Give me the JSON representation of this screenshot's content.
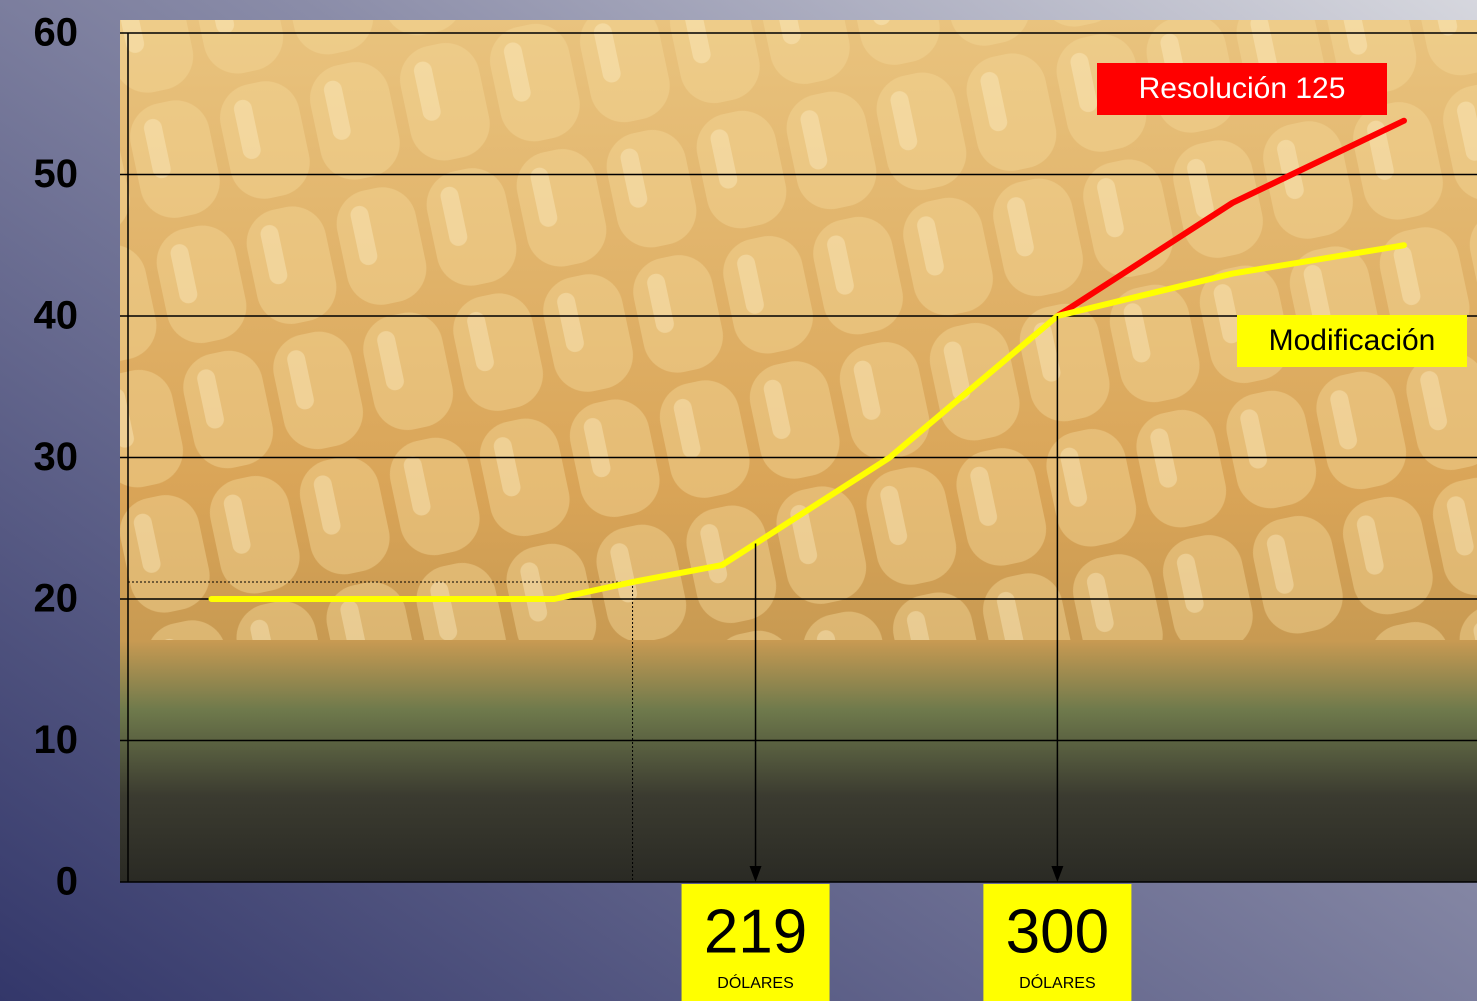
{
  "chart_data": {
    "type": "line",
    "xlim": [
      50.6,
      412.6
    ],
    "ylim": [
      0,
      60
    ],
    "yticks": [
      0,
      10,
      20,
      30,
      40,
      50,
      60
    ],
    "grid": true,
    "series": [
      {
        "name": "Modificación",
        "color": "#ffff00",
        "x": [
          73,
          165,
          186,
          210,
          255,
          300,
          347,
          393
        ],
        "values": [
          20,
          20,
          21.2,
          22.4,
          30,
          40,
          43,
          45
        ]
      },
      {
        "name": "Resolución 125",
        "color": "#ff0000",
        "x": [
          300,
          347,
          393
        ],
        "values": [
          40,
          48,
          53.8
        ]
      }
    ],
    "annotations": [
      {
        "x": 219,
        "text": "219",
        "subtext": "DÓLARES"
      },
      {
        "x": 300,
        "text": "300",
        "subtext": "DÓLARES"
      }
    ]
  }
}
